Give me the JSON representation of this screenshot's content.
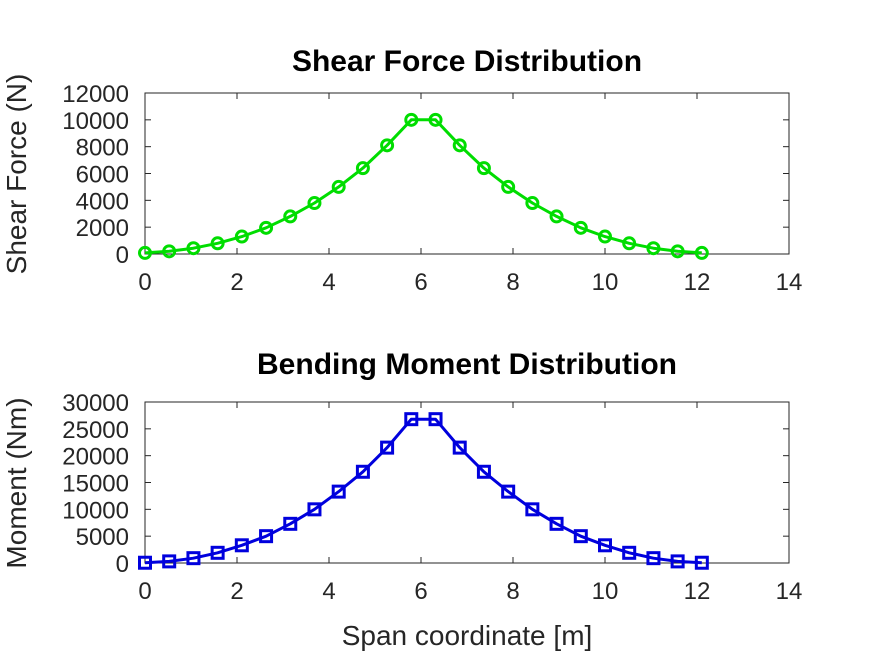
{
  "chart_data": [
    {
      "type": "line",
      "title": "Shear Force Distribution",
      "xlabel": "",
      "ylabel": "Shear Force (N)",
      "xlim": [
        0,
        14
      ],
      "ylim": [
        0,
        12000
      ],
      "xticks": [
        0,
        2,
        4,
        6,
        8,
        10,
        12,
        14
      ],
      "yticks": [
        0,
        2000,
        4000,
        6000,
        8000,
        10000,
        12000
      ],
      "grid": false,
      "color": "#00dd00",
      "marker": "circle",
      "x": [
        0,
        0.526,
        1.053,
        1.579,
        2.105,
        2.632,
        3.158,
        3.684,
        4.211,
        4.737,
        5.263,
        5.789,
        6.316,
        6.842,
        7.368,
        7.895,
        8.421,
        8.947,
        9.474,
        10,
        10.526,
        11.053,
        11.579,
        12.105
      ],
      "values": [
        80,
        200,
        430,
        800,
        1300,
        1950,
        2800,
        3800,
        5000,
        6400,
        8100,
        10000,
        10000,
        8100,
        6400,
        5000,
        3800,
        2800,
        1950,
        1300,
        800,
        430,
        200,
        80
      ]
    },
    {
      "type": "line",
      "title": "Bending Moment Distribution",
      "xlabel": "Span coordinate [m]",
      "ylabel": "Moment (Nm)",
      "xlim": [
        0,
        14
      ],
      "ylim": [
        0,
        30000
      ],
      "xticks": [
        0,
        2,
        4,
        6,
        8,
        10,
        12,
        14
      ],
      "yticks": [
        0,
        5000,
        10000,
        15000,
        20000,
        25000,
        30000
      ],
      "grid": false,
      "color": "#0000dd",
      "marker": "square",
      "x": [
        0,
        0.526,
        1.053,
        1.579,
        2.105,
        2.632,
        3.158,
        3.684,
        4.211,
        4.737,
        5.263,
        5.789,
        6.316,
        6.842,
        7.368,
        7.895,
        8.421,
        8.947,
        9.474,
        10,
        10.526,
        11.053,
        11.579,
        12.105
      ],
      "values": [
        50,
        300,
        900,
        1900,
        3300,
        5000,
        7300,
        10000,
        13300,
        17000,
        21500,
        26800,
        26800,
        21500,
        17000,
        13300,
        10000,
        7300,
        5000,
        3300,
        1900,
        900,
        300,
        50
      ]
    }
  ]
}
